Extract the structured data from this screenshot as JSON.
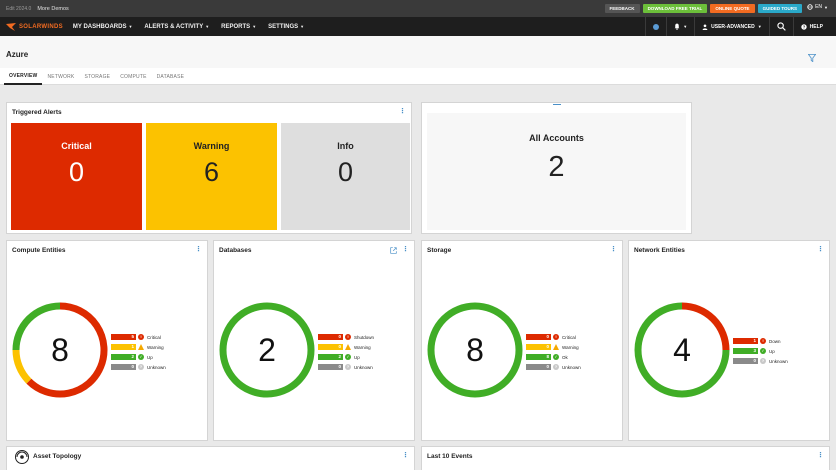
{
  "topbar": {
    "version": "Edit 2024.0",
    "more_demos": "More Demos",
    "buttons": [
      {
        "label": "FEEDBACK",
        "color": "#555555"
      },
      {
        "label": "DOWNLOAD FREE TRIAL",
        "color": "#6cbf3a"
      },
      {
        "label": "ONLINE QUOTE",
        "color": "#f26b21"
      },
      {
        "label": "GUIDED TOURS",
        "color": "#2aa9c9"
      }
    ],
    "language": "EN"
  },
  "nav": {
    "brand": "SOLARWINDS",
    "items": [
      "MY DASHBOARDS",
      "ALERTS & ACTIVITY",
      "REPORTS",
      "SETTINGS"
    ],
    "user": "USER-ADVANCED",
    "help": "HELP"
  },
  "page": {
    "title": "Azure",
    "tabs": [
      "OVERVIEW",
      "NETWORK",
      "STORAGE",
      "COMPUTE",
      "DATABASE"
    ],
    "active_tab": "OVERVIEW"
  },
  "triggered_alerts": {
    "title": "Triggered Alerts",
    "tiles": [
      {
        "label": "Critical",
        "value": "0",
        "color": "#dd2a00",
        "text_color": "#ffffff"
      },
      {
        "label": "Warning",
        "value": "6",
        "color": "#fcc200",
        "text_color": "#222222"
      },
      {
        "label": "Info",
        "value": "0",
        "color": "#dedede",
        "text_color": "#222222"
      }
    ]
  },
  "accounts": {
    "label": "All Accounts",
    "value": "2"
  },
  "widgets": [
    {
      "title": "Compute Entities",
      "total": "8",
      "segments": [
        {
          "value": 5,
          "color": "#dd2a00"
        },
        {
          "value": 1,
          "color": "#fcc200"
        },
        {
          "value": 2,
          "color": "#40ad26"
        }
      ],
      "legend": [
        {
          "count": "5",
          "label": "Critical",
          "color": "#dd2a00",
          "icon": "critical-icon"
        },
        {
          "count": "1",
          "label": "Warning",
          "color": "#fcc200",
          "icon": "warning-icon"
        },
        {
          "count": "2",
          "label": "Up",
          "color": "#40ad26",
          "icon": "up-icon"
        },
        {
          "count": "0",
          "label": "Unknown",
          "color": "#8a8a8a",
          "icon": "unknown-icon"
        }
      ]
    },
    {
      "title": "Databases",
      "total": "2",
      "segments": [
        {
          "value": 2,
          "color": "#40ad26"
        }
      ],
      "legend": [
        {
          "count": "0",
          "label": "Shutdown",
          "color": "#dd2a00",
          "icon": "critical-icon"
        },
        {
          "count": "0",
          "label": "Warning",
          "color": "#fcc200",
          "icon": "warning-icon"
        },
        {
          "count": "2",
          "label": "Up",
          "color": "#40ad26",
          "icon": "up-icon"
        },
        {
          "count": "0",
          "label": "Unknown",
          "color": "#8a8a8a",
          "icon": "unknown-icon"
        }
      ]
    },
    {
      "title": "Storage",
      "total": "8",
      "segments": [
        {
          "value": 8,
          "color": "#40ad26"
        }
      ],
      "legend": [
        {
          "count": "0",
          "label": "Critical",
          "color": "#dd2a00",
          "icon": "critical-icon"
        },
        {
          "count": "0",
          "label": "Warning",
          "color": "#fcc200",
          "icon": "warning-icon"
        },
        {
          "count": "8",
          "label": "Ok",
          "color": "#40ad26",
          "icon": "up-icon"
        },
        {
          "count": "0",
          "label": "Unknown",
          "color": "#8a8a8a",
          "icon": "unknown-icon"
        }
      ]
    },
    {
      "title": "Network Entities",
      "total": "4",
      "segments": [
        {
          "value": 1,
          "color": "#dd2a00"
        },
        {
          "value": 3,
          "color": "#40ad26"
        }
      ],
      "legend": [
        {
          "count": "1",
          "label": "Down",
          "color": "#dd2a00",
          "icon": "critical-icon"
        },
        {
          "count": "3",
          "label": "Up",
          "color": "#40ad26",
          "icon": "up-icon"
        },
        {
          "count": "0",
          "label": "Unknown",
          "color": "#8a8a8a",
          "icon": "unknown-icon"
        }
      ]
    }
  ],
  "bottom": {
    "asset_topology": "Asset Topology",
    "last_events": "Last 10 Events"
  }
}
